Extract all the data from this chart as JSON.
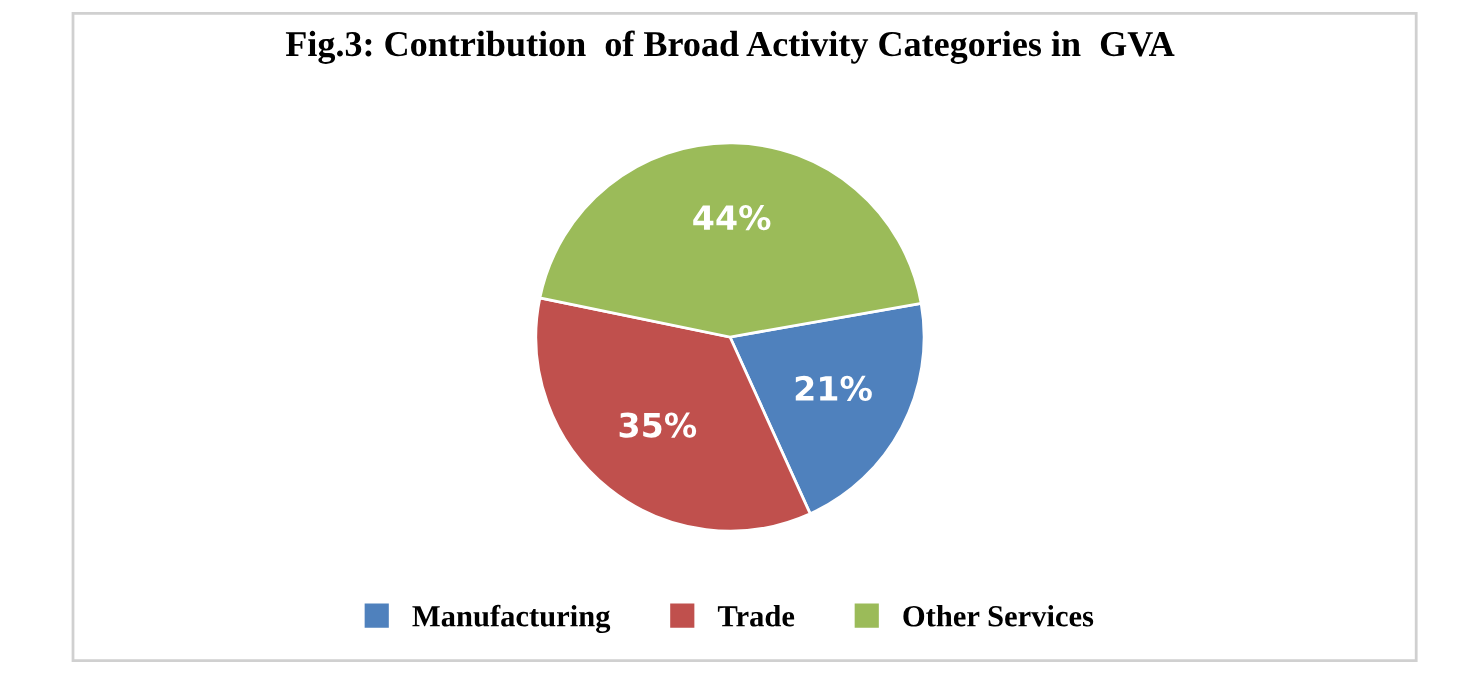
{
  "chart_data": {
    "type": "pie",
    "title": "Fig.3: Contribution  of Broad Activity Categories in  GVA",
    "categories": [
      "Manufacturing",
      "Trade",
      "Other Services"
    ],
    "values": [
      21,
      35,
      44
    ],
    "colors": [
      "#4f81bd",
      "#c0504d",
      "#9bbb59"
    ],
    "value_labels": [
      "21%",
      "35%",
      "44%"
    ],
    "legend": "bottom"
  }
}
